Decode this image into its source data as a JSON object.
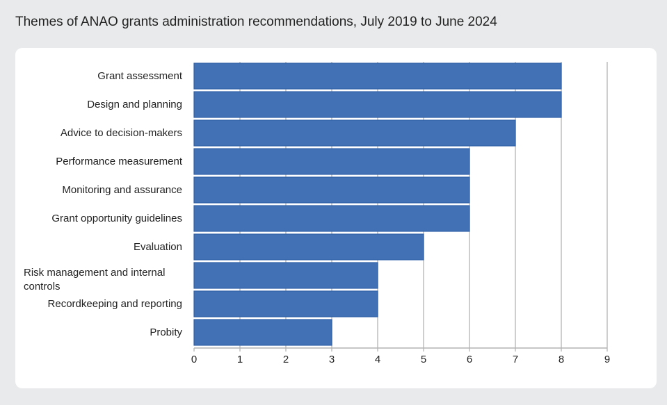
{
  "chart_data": {
    "type": "bar",
    "orientation": "horizontal",
    "title": "Themes of ANAO grants administration recommendations, July 2019 to June 2024",
    "categories": [
      "Grant assessment",
      "Design and planning",
      "Advice to decision-makers",
      "Performance measurement",
      "Monitoring and assurance",
      "Grant opportunity guidelines",
      "Evaluation",
      "Risk management and internal controls",
      "Recordkeeping and reporting",
      "Probity"
    ],
    "values": [
      8,
      8,
      7,
      6,
      6,
      6,
      5,
      4,
      4,
      3
    ],
    "xlabel": "",
    "ylabel": "",
    "xlim": [
      0,
      9
    ],
    "xticks": [
      "0",
      "1",
      "2",
      "3",
      "4",
      "5",
      "6",
      "7",
      "8",
      "9"
    ],
    "grid": true,
    "bar_color": "#4272b5",
    "bar_border_color": "#2e5ea6"
  }
}
